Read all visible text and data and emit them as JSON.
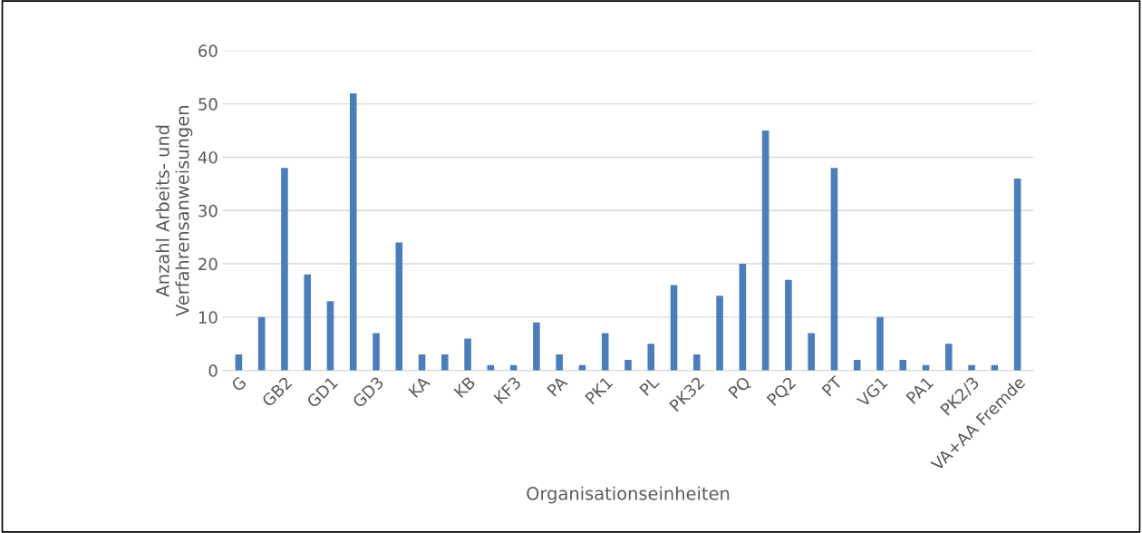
{
  "chart_data": {
    "type": "bar",
    "xlabel": "Organisationseinheiten",
    "ylabel": "Anzahl Arbeits- und\nVerfahrensanweisungen",
    "categories": [
      "G",
      null,
      "GB2",
      null,
      "GD1",
      null,
      "GD3",
      null,
      "KA",
      null,
      "KB",
      null,
      "KF3",
      null,
      "PA",
      null,
      "PK1",
      null,
      "PL",
      null,
      "PK32",
      null,
      "PQ",
      null,
      "PQ2",
      null,
      "PT",
      null,
      "VG1",
      null,
      "PA1",
      null,
      "PK2/3",
      null,
      "VA+AA Fremde"
    ],
    "values": [
      3,
      10,
      38,
      18,
      13,
      52,
      7,
      24,
      3,
      3,
      6,
      1,
      1,
      9,
      3,
      1,
      7,
      2,
      5,
      16,
      3,
      14,
      20,
      45,
      17,
      7,
      38,
      2,
      10,
      2,
      1,
      5,
      1,
      1,
      36
    ],
    "color": "#4a7ebb",
    "ylim": [
      0,
      60
    ],
    "yticks": [
      0,
      10,
      20,
      30,
      40,
      50,
      60
    ],
    "grid": "y",
    "legend": false
  }
}
